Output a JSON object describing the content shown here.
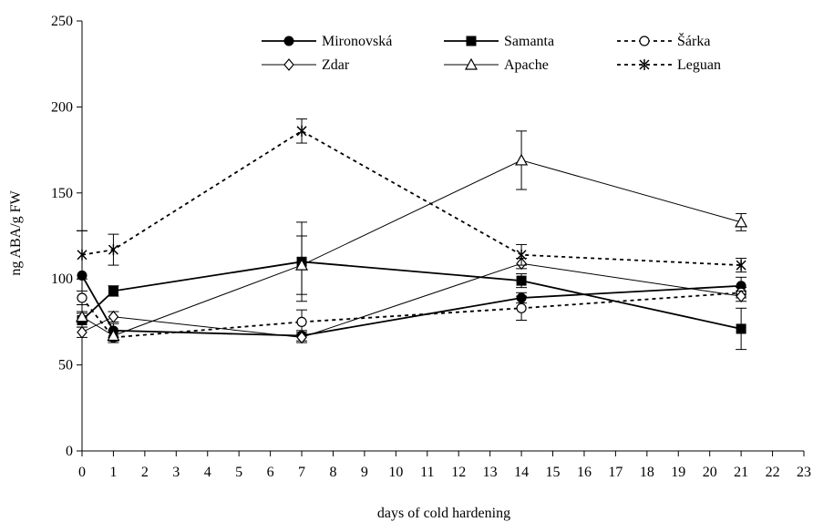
{
  "chart_data": {
    "type": "line",
    "title": "",
    "xlabel": "days of cold hardening",
    "ylabel": "ng ABA/g FW",
    "xlim": [
      0,
      23
    ],
    "ylim": [
      0,
      250
    ],
    "x_ticks": [
      0,
      1,
      2,
      3,
      4,
      5,
      6,
      7,
      8,
      9,
      10,
      11,
      12,
      13,
      14,
      15,
      16,
      17,
      18,
      19,
      20,
      21,
      22,
      23
    ],
    "y_ticks": [
      0,
      50,
      100,
      150,
      200,
      250
    ],
    "grid": false,
    "legend_position": "top",
    "series": [
      {
        "name": "Mironovská",
        "marker": "filled-circle",
        "line": "solid",
        "color": "#000000",
        "x": [
          0,
          1,
          7,
          14,
          21
        ],
        "values": [
          102,
          70,
          67,
          89,
          96
        ],
        "errors": [
          26,
          4,
          3,
          3,
          5
        ]
      },
      {
        "name": "Samanta",
        "marker": "filled-square",
        "line": "solid",
        "color": "#000000",
        "x": [
          0,
          1,
          7,
          14,
          21
        ],
        "values": [
          76,
          93,
          110,
          99,
          71
        ],
        "errors": [
          4,
          3,
          23,
          4,
          12
        ]
      },
      {
        "name": "Šárka",
        "marker": "open-circle",
        "line": "dotted",
        "color": "#000000",
        "x": [
          0,
          1,
          7,
          14,
          21
        ],
        "values": [
          89,
          66,
          75,
          83,
          92
        ],
        "errors": [
          4,
          3,
          7,
          7,
          3
        ]
      },
      {
        "name": "Zdar",
        "marker": "open-diamond",
        "line": "solid-thin",
        "color": "#000000",
        "x": [
          0,
          1,
          7,
          14,
          21
        ],
        "values": [
          69,
          78,
          66,
          109,
          90
        ],
        "errors": [
          3,
          3,
          3,
          3,
          3
        ]
      },
      {
        "name": "Apache",
        "marker": "open-triangle",
        "line": "solid-thin",
        "color": "#000000",
        "x": [
          0,
          1,
          7,
          14,
          21
        ],
        "values": [
          78,
          67,
          108,
          169,
          133
        ],
        "errors": [
          3,
          3,
          17,
          17,
          5
        ]
      },
      {
        "name": "Leguan",
        "marker": "asterisk",
        "line": "dotted",
        "color": "#000000",
        "x": [
          0,
          1,
          7,
          14,
          21
        ],
        "values": [
          114,
          117,
          186,
          114,
          108
        ],
        "errors": [
          14,
          9,
          7,
          6,
          4
        ]
      }
    ]
  }
}
